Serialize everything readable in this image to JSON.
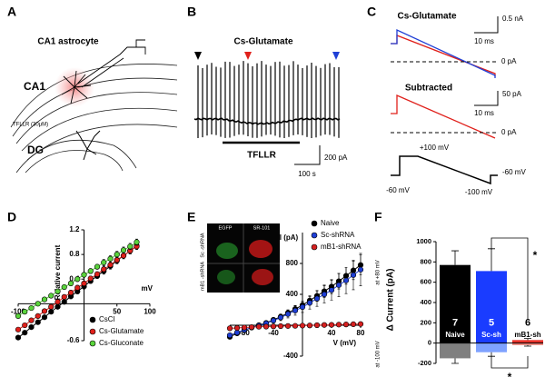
{
  "panel_labels": [
    "A",
    "B",
    "C",
    "D",
    "E",
    "F"
  ],
  "panel_a": {
    "title": "CA1 astrocyte",
    "regions": [
      "CA1",
      "DG"
    ],
    "drug": "TFLLR (30μM)"
  },
  "panel_b": {
    "title": "Cs-Glutamate",
    "drug": "TFLLR",
    "scale_y": "200 pA",
    "scale_x": "100 s"
  },
  "panel_c": {
    "top_title": "Cs-Glutamate",
    "top_scale_y": "0.5 nA",
    "top_scale_x": "10 ms",
    "top_zero": "0 pA",
    "bottom_title": "Subtracted",
    "bottom_scale_y": "50 pA",
    "bottom_scale_x": "10 ms",
    "bottom_zero": "0 pA",
    "protocol": [
      "-60 mV",
      "+100 mV",
      "-100 mV",
      "-60 mV"
    ]
  },
  "panel_e_inset": {
    "columns": [
      "EGFP",
      "SR-101"
    ],
    "rows": [
      "Sc -shRNA",
      "mB1 -shRNA"
    ]
  },
  "chart_data": [
    {
      "type": "line",
      "ylabel": "Relative current",
      "xlabel": "mV",
      "x": [
        -100,
        -90,
        -80,
        -70,
        -60,
        -50,
        -40,
        -30,
        -20,
        -10,
        0,
        10,
        20,
        30,
        40,
        50,
        60,
        70,
        80
      ],
      "xlim": [
        -100,
        100
      ],
      "ylim": [
        -0.6,
        1.2
      ],
      "xticks": [
        -100,
        50,
        100
      ],
      "yticks": [
        -0.6,
        0.4,
        0.8,
        1.2
      ],
      "legend": "bottom",
      "series": [
        {
          "name": "CsCl",
          "color": "#000000",
          "values": [
            -0.55,
            -0.47,
            -0.38,
            -0.3,
            -0.22,
            -0.13,
            -0.05,
            0.03,
            0.12,
            0.2,
            0.28,
            0.37,
            0.45,
            0.53,
            0.61,
            0.7,
            0.78,
            0.86,
            0.94
          ],
          "errors": [
            0.03,
            0.03,
            0.03,
            0.03,
            0.03,
            0.03,
            0.03,
            0.03,
            0.04,
            0.04,
            0.04,
            0.04,
            0.04,
            0.05,
            0.05,
            0.05,
            0.05,
            0.05,
            0.05
          ]
        },
        {
          "name": "Cs-Glutamate",
          "color": "#e0201b",
          "values": [
            -0.42,
            -0.35,
            -0.27,
            -0.2,
            -0.12,
            -0.05,
            0.03,
            0.11,
            0.18,
            0.26,
            0.33,
            0.41,
            0.48,
            0.56,
            0.63,
            0.71,
            0.78,
            0.86,
            0.93
          ],
          "errors": [
            0.03,
            0.03,
            0.03,
            0.03,
            0.03,
            0.03,
            0.03,
            0.03,
            0.04,
            0.04,
            0.04,
            0.04,
            0.04,
            0.05,
            0.05,
            0.05,
            0.05,
            0.05,
            0.05
          ]
        },
        {
          "name": "Cs-Gluconate",
          "color": "#5ad43c",
          "values": [
            -0.2,
            -0.13,
            -0.07,
            0.0,
            0.07,
            0.13,
            0.2,
            0.27,
            0.33,
            0.4,
            0.47,
            0.53,
            0.6,
            0.67,
            0.73,
            0.8,
            0.87,
            0.93,
            1.0
          ],
          "errors": [
            0.03,
            0.03,
            0.03,
            0.03,
            0.03,
            0.03,
            0.03,
            0.03,
            0.04,
            0.04,
            0.04,
            0.04,
            0.04,
            0.05,
            0.05,
            0.05,
            0.05,
            0.05,
            0.05
          ]
        }
      ]
    },
    {
      "type": "line",
      "ylabel": "I (pA)",
      "xlabel": "V (mV)",
      "x": [
        -100,
        -90,
        -80,
        -70,
        -60,
        -50,
        -40,
        -30,
        -20,
        -10,
        0,
        10,
        20,
        30,
        40,
        50,
        60,
        70,
        80
      ],
      "xlim": [
        -100,
        80
      ],
      "ylim": [
        -400,
        1200
      ],
      "xticks": [
        -80,
        -40,
        40,
        80
      ],
      "yticks": [
        -400,
        400,
        800
      ],
      "legend": "top right",
      "series": [
        {
          "name": "Naive",
          "color": "#000000",
          "values": [
            -150,
            -105,
            -65,
            -30,
            0,
            30,
            70,
            110,
            160,
            210,
            260,
            320,
            380,
            440,
            500,
            570,
            640,
            710,
            780
          ],
          "errors": [
            20,
            20,
            20,
            20,
            20,
            25,
            30,
            35,
            40,
            45,
            50,
            60,
            70,
            80,
            90,
            100,
            110,
            120,
            130
          ]
        },
        {
          "name": "Sc-shRNA",
          "color": "#1f3fd6",
          "values": [
            -130,
            -95,
            -60,
            -30,
            -5,
            25,
            60,
            100,
            145,
            190,
            235,
            290,
            345,
            400,
            455,
            520,
            580,
            650,
            720
          ],
          "errors": [
            20,
            20,
            20,
            20,
            25,
            30,
            35,
            40,
            50,
            60,
            70,
            80,
            100,
            110,
            130,
            150,
            170,
            190,
            210
          ]
        },
        {
          "name": "mB1-shRNA",
          "color": "#d62020",
          "values": [
            -40,
            -35,
            -30,
            -25,
            -20,
            -18,
            -15,
            -12,
            -10,
            -8,
            -5,
            -3,
            0,
            3,
            5,
            8,
            10,
            13,
            15
          ],
          "errors": [
            10,
            10,
            10,
            10,
            10,
            10,
            10,
            10,
            10,
            10,
            10,
            10,
            10,
            10,
            10,
            10,
            10,
            10,
            10
          ]
        }
      ]
    },
    {
      "type": "bar",
      "ylabel": "Δ Current (pA)",
      "categories": [
        "Naive",
        "Sc-sh",
        "mB1-sh"
      ],
      "n": [
        7,
        5,
        6
      ],
      "ylim": [
        -200,
        1000
      ],
      "yticks": [
        -200,
        0,
        200,
        400,
        600,
        800,
        1000
      ],
      "annotations": [
        "*",
        "*"
      ],
      "series": [
        {
          "name": "at +80 mV",
          "colors": [
            "#000000",
            "#1a3cff",
            "#e8322a"
          ],
          "values": [
            770,
            710,
            30
          ],
          "errors": [
            140,
            220,
            15
          ]
        },
        {
          "name": "at -100 mV",
          "colors": [
            "#808080",
            "#7fa2ff",
            "#f08a80"
          ],
          "values": [
            -150,
            -90,
            -20
          ],
          "errors": [
            50,
            40,
            10
          ]
        }
      ]
    }
  ]
}
